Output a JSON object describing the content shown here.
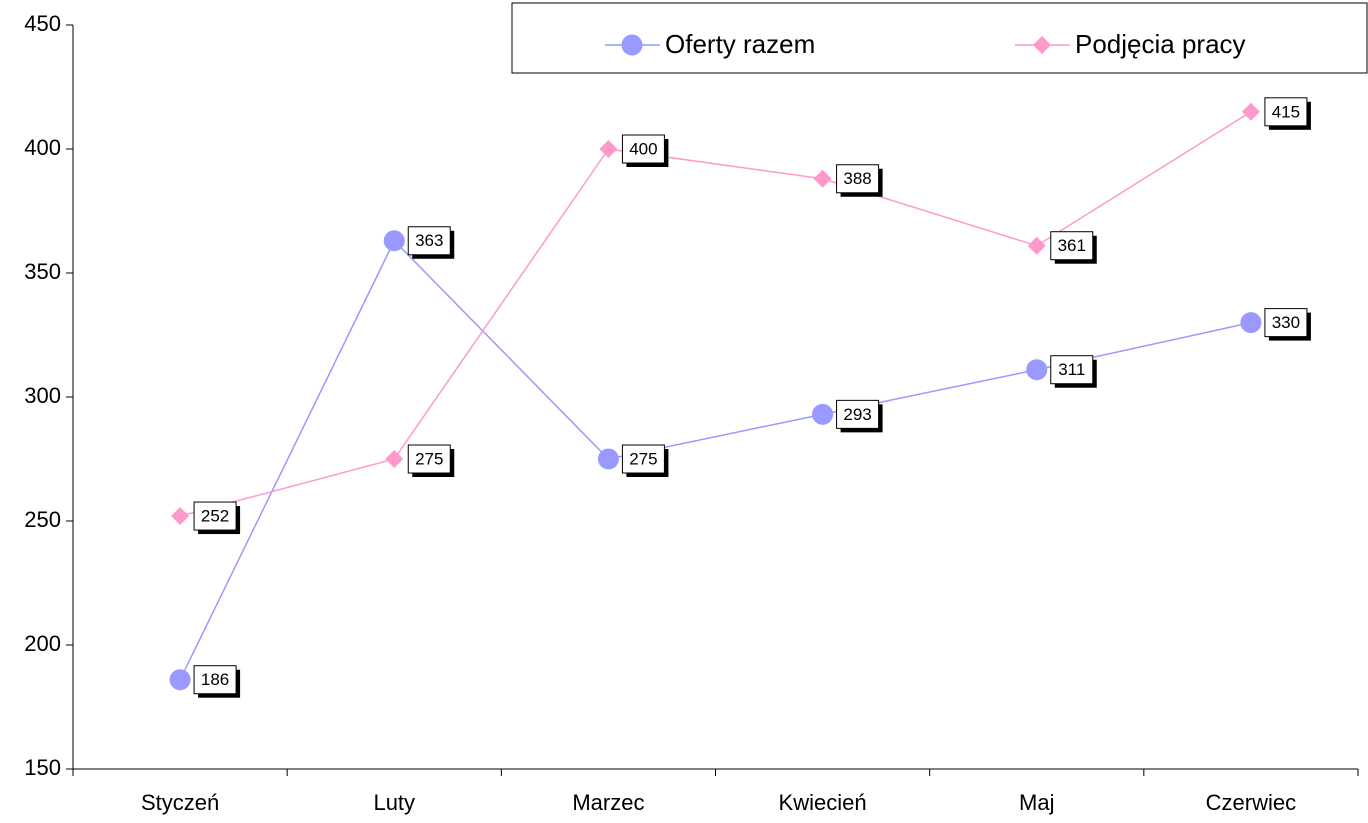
{
  "chart_data": {
    "type": "line",
    "categories": [
      "Styczeń",
      "Luty",
      "Marzec",
      "Kwiecień",
      "Maj",
      "Czerwiec"
    ],
    "series": [
      {
        "name": "Oferty razem",
        "color": "#9999ff",
        "marker": "circle",
        "values": [
          186,
          363,
          275,
          293,
          311,
          330
        ]
      },
      {
        "name": "Podjęcia pracy",
        "color": "#ff99cc",
        "marker": "diamond",
        "values": [
          252,
          275,
          400,
          388,
          361,
          415
        ]
      }
    ],
    "ylim": [
      150,
      450
    ],
    "yticks": [
      150,
      200,
      250,
      300,
      350,
      400,
      450
    ],
    "grid": false,
    "legend": "top-right",
    "data_labels": true
  }
}
